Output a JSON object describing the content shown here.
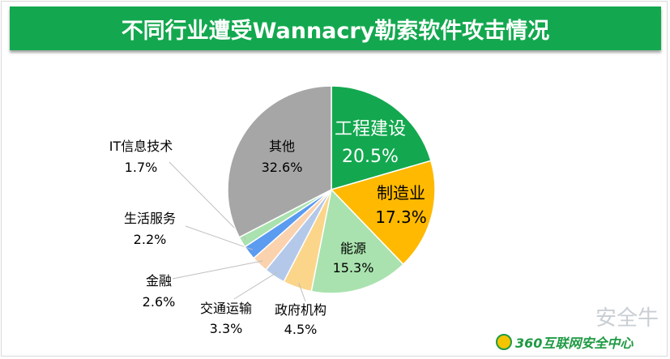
{
  "title": "不同行业遭受Wannacry勒索软件攻击情况",
  "chart_data": {
    "type": "pie",
    "title": "不同行业遭受Wannacry勒索软件攻击情况",
    "start_angle_deg": 0,
    "direction": "clockwise",
    "slices": [
      {
        "label": "工程建设",
        "value": 20.5,
        "value_label": "20.5%",
        "color": "#13a84f",
        "text_color": "#ffffff"
      },
      {
        "label": "制造业",
        "value": 17.3,
        "value_label": "17.3%",
        "color": "#ffb900",
        "text_color": "#000000"
      },
      {
        "label": "能源",
        "value": 15.3,
        "value_label": "15.3%",
        "color": "#a9e2ae",
        "text_color": "#000000"
      },
      {
        "label": "政府机构",
        "value": 4.5,
        "value_label": "4.5%",
        "color": "#fbd58a",
        "text_color": "#000000"
      },
      {
        "label": "交通运输",
        "value": 3.3,
        "value_label": "3.3%",
        "color": "#b4c9ea",
        "text_color": "#000000"
      },
      {
        "label": "金融",
        "value": 2.6,
        "value_label": "2.6%",
        "color": "#fad2ae",
        "text_color": "#000000"
      },
      {
        "label": "生活服务",
        "value": 2.2,
        "value_label": "2.2%",
        "color": "#5b9bf0",
        "text_color": "#000000"
      },
      {
        "label": "IT信息技术",
        "value": 1.7,
        "value_label": "1.7%",
        "color": "#a9e2ae",
        "text_color": "#000000"
      },
      {
        "label": "其他",
        "value": 32.6,
        "value_label": "32.6%",
        "color": "#a6a6a6",
        "text_color": "#000000"
      }
    ]
  },
  "watermark": {
    "name": "安全牛",
    "brand": "360互联网安全中心"
  }
}
